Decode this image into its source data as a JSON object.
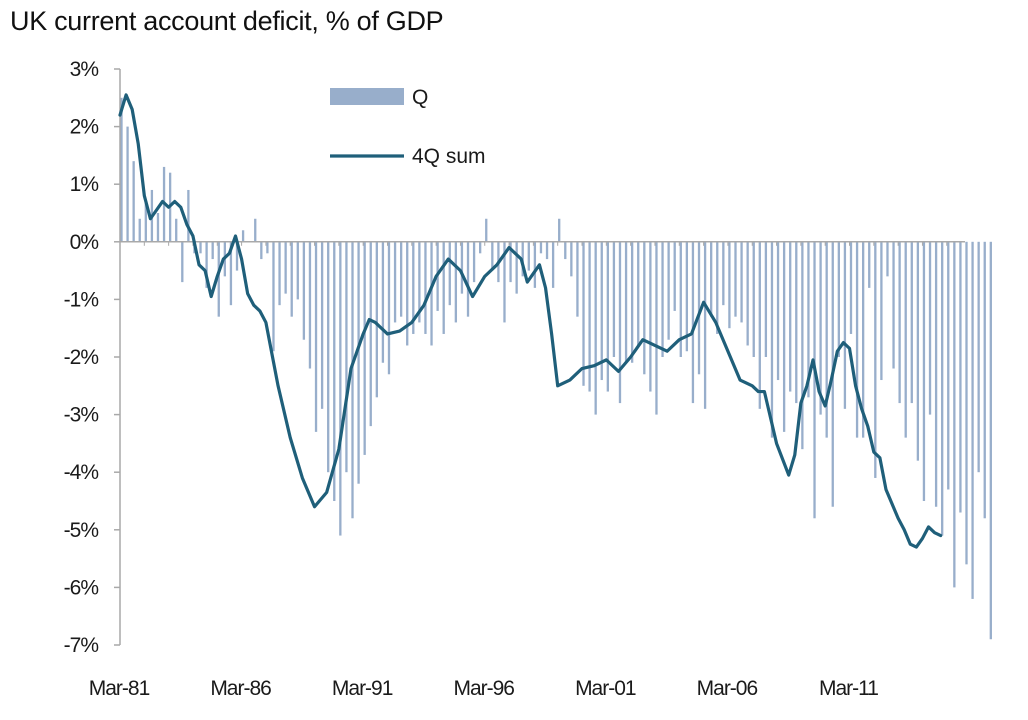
{
  "chart_data": {
    "type": "bar+line",
    "title": "UK current account deficit, % of GDP",
    "xlabel": "",
    "ylabel": "",
    "ylim": [
      -7,
      3
    ],
    "y_ticks": [
      "3%",
      "2%",
      "1%",
      "0%",
      "-1%",
      "-2%",
      "-3%",
      "-4%",
      "-5%",
      "-6%",
      "-7%"
    ],
    "y_tick_values": [
      3,
      2,
      1,
      0,
      -1,
      -2,
      -3,
      -4,
      -5,
      -6,
      -7
    ],
    "x_ticks": [
      "Mar-81",
      "Mar-86",
      "Mar-91",
      "Mar-96",
      "Mar-01",
      "Mar-06",
      "Mar-11"
    ],
    "x_tick_years": [
      1981,
      1986,
      1991,
      1996,
      2001,
      2006,
      2011
    ],
    "x_range": [
      1981,
      2015.75
    ],
    "legend": {
      "position": "top-center"
    },
    "colors": {
      "bars": "#98aecb",
      "line": "#1f5f7a",
      "axis": "#a9a9a9",
      "text": "#1a1a1a"
    },
    "series": [
      {
        "name": "Q",
        "kind": "bar",
        "quarterly": true,
        "start": 1981,
        "values": [
          2.5,
          2.0,
          1.4,
          0.4,
          0.7,
          0.9,
          0.5,
          1.3,
          1.2,
          0.4,
          -0.7,
          0.9,
          -0.2,
          -0.2,
          -0.8,
          -0.3,
          -1.3,
          -0.6,
          -1.1,
          -0.5,
          0.2,
          0.0,
          0.4,
          -0.3,
          -0.2,
          -1.9,
          -1.1,
          -0.9,
          -1.3,
          -1.0,
          -1.7,
          -2.2,
          -3.3,
          -2.9,
          -4.0,
          -4.5,
          -5.1,
          -4.0,
          -4.8,
          -4.2,
          -3.7,
          -3.2,
          -2.7,
          -2.1,
          -2.3,
          -1.4,
          -1.3,
          -1.8,
          -1.6,
          -1.4,
          -1.6,
          -1.8,
          -1.2,
          -1.6,
          -1.1,
          -1.4,
          -0.9,
          -1.3,
          -0.7,
          -0.2,
          0.4,
          -0.5,
          -0.7,
          -1.4,
          -0.7,
          -0.9,
          -0.6,
          -0.5,
          -0.8,
          -0.2,
          -0.3,
          -0.8,
          0.4,
          -0.3,
          -0.6,
          -1.3,
          -2.5,
          -2.6,
          -3.0,
          -2.4,
          -2.6,
          -2.0,
          -2.8,
          -2.1,
          -2.1,
          -1.8,
          -2.3,
          -2.6,
          -3.0,
          -2.0,
          -1.7,
          -1.2,
          -2.0,
          -1.9,
          -2.8,
          -2.3,
          -2.9,
          -1.3,
          -1.6,
          -1.1,
          -1.5,
          -1.3,
          -1.4,
          -1.8,
          -2.0,
          -2.9,
          -2.0,
          -3.4,
          -2.4,
          -3.3,
          -2.6,
          -2.8,
          -3.6,
          -2.7,
          -4.8,
          -3.0,
          -3.4,
          -4.6,
          -2.0,
          -2.9,
          -1.6,
          -3.4,
          -3.4,
          -0.8,
          -4.1,
          -2.4,
          -0.6,
          -2.2,
          -2.8,
          -3.4,
          -2.8,
          -3.8,
          -4.5,
          -3.0,
          -4.6,
          -5.1,
          -4.3,
          -6.0,
          -4.7,
          -5.6,
          -6.2,
          -4.0,
          -4.8,
          -6.9
        ]
      },
      {
        "name": "4Q sum",
        "kind": "line",
        "points": [
          [
            1981.0,
            2.2
          ],
          [
            1981.25,
            2.55
          ],
          [
            1981.5,
            2.3
          ],
          [
            1981.75,
            1.7
          ],
          [
            1982.0,
            0.8
          ],
          [
            1982.25,
            0.4
          ],
          [
            1982.5,
            0.55
          ],
          [
            1982.75,
            0.7
          ],
          [
            1983.0,
            0.6
          ],
          [
            1983.25,
            0.7
          ],
          [
            1983.5,
            0.6
          ],
          [
            1983.75,
            0.3
          ],
          [
            1984.0,
            0.1
          ],
          [
            1984.25,
            -0.4
          ],
          [
            1984.5,
            -0.5
          ],
          [
            1984.75,
            -0.95
          ],
          [
            1985.0,
            -0.6
          ],
          [
            1985.25,
            -0.3
          ],
          [
            1985.5,
            -0.2
          ],
          [
            1985.75,
            0.1
          ],
          [
            1986.0,
            -0.3
          ],
          [
            1986.25,
            -0.9
          ],
          [
            1986.5,
            -1.1
          ],
          [
            1986.75,
            -1.2
          ],
          [
            1987.0,
            -1.4
          ],
          [
            1987.5,
            -2.5
          ],
          [
            1988.0,
            -3.4
          ],
          [
            1988.5,
            -4.1
          ],
          [
            1989.0,
            -4.6
          ],
          [
            1989.5,
            -4.35
          ],
          [
            1990.0,
            -3.6
          ],
          [
            1990.5,
            -2.2
          ],
          [
            1991.0,
            -1.6
          ],
          [
            1991.25,
            -1.35
          ],
          [
            1991.5,
            -1.4
          ],
          [
            1992.0,
            -1.6
          ],
          [
            1992.5,
            -1.55
          ],
          [
            1993.0,
            -1.4
          ],
          [
            1993.5,
            -1.1
          ],
          [
            1994.0,
            -0.6
          ],
          [
            1994.5,
            -0.3
          ],
          [
            1995.0,
            -0.5
          ],
          [
            1995.5,
            -0.95
          ],
          [
            1996.0,
            -0.6
          ],
          [
            1996.5,
            -0.4
          ],
          [
            1997.0,
            -0.1
          ],
          [
            1997.5,
            -0.3
          ],
          [
            1997.75,
            -0.7
          ],
          [
            1998.0,
            -0.55
          ],
          [
            1998.25,
            -0.4
          ],
          [
            1998.5,
            -0.8
          ],
          [
            1998.75,
            -1.6
          ],
          [
            1999.0,
            -2.5
          ],
          [
            1999.25,
            -2.45
          ],
          [
            1999.5,
            -2.4
          ],
          [
            2000.0,
            -2.2
          ],
          [
            2000.5,
            -2.15
          ],
          [
            2001.0,
            -2.05
          ],
          [
            2001.5,
            -2.25
          ],
          [
            2002.0,
            -2.0
          ],
          [
            2002.5,
            -1.7
          ],
          [
            2003.0,
            -1.8
          ],
          [
            2003.5,
            -1.9
          ],
          [
            2004.0,
            -1.7
          ],
          [
            2004.5,
            -1.6
          ],
          [
            2005.0,
            -1.05
          ],
          [
            2005.5,
            -1.4
          ],
          [
            2006.0,
            -1.9
          ],
          [
            2006.5,
            -2.4
          ],
          [
            2007.0,
            -2.5
          ],
          [
            2007.25,
            -2.6
          ],
          [
            2007.5,
            -2.6
          ],
          [
            2008.0,
            -3.5
          ],
          [
            2008.5,
            -4.05
          ],
          [
            2008.75,
            -3.7
          ],
          [
            2009.0,
            -2.8
          ],
          [
            2009.25,
            -2.5
          ],
          [
            2009.5,
            -2.05
          ],
          [
            2009.75,
            -2.6
          ],
          [
            2010.0,
            -2.85
          ],
          [
            2010.25,
            -2.4
          ],
          [
            2010.5,
            -1.9
          ],
          [
            2010.75,
            -1.75
          ],
          [
            2011.0,
            -1.85
          ],
          [
            2011.25,
            -2.5
          ],
          [
            2011.5,
            -2.9
          ],
          [
            2011.75,
            -3.2
          ],
          [
            2012.0,
            -3.65
          ],
          [
            2012.25,
            -3.75
          ],
          [
            2012.5,
            -4.3
          ],
          [
            2012.75,
            -4.55
          ],
          [
            2013.0,
            -4.8
          ],
          [
            2013.25,
            -5.0
          ],
          [
            2013.5,
            -5.25
          ],
          [
            2013.75,
            -5.3
          ],
          [
            2014.0,
            -5.15
          ],
          [
            2014.25,
            -4.95
          ],
          [
            2014.5,
            -5.05
          ],
          [
            2014.75,
            -5.1
          ]
        ]
      }
    ]
  }
}
